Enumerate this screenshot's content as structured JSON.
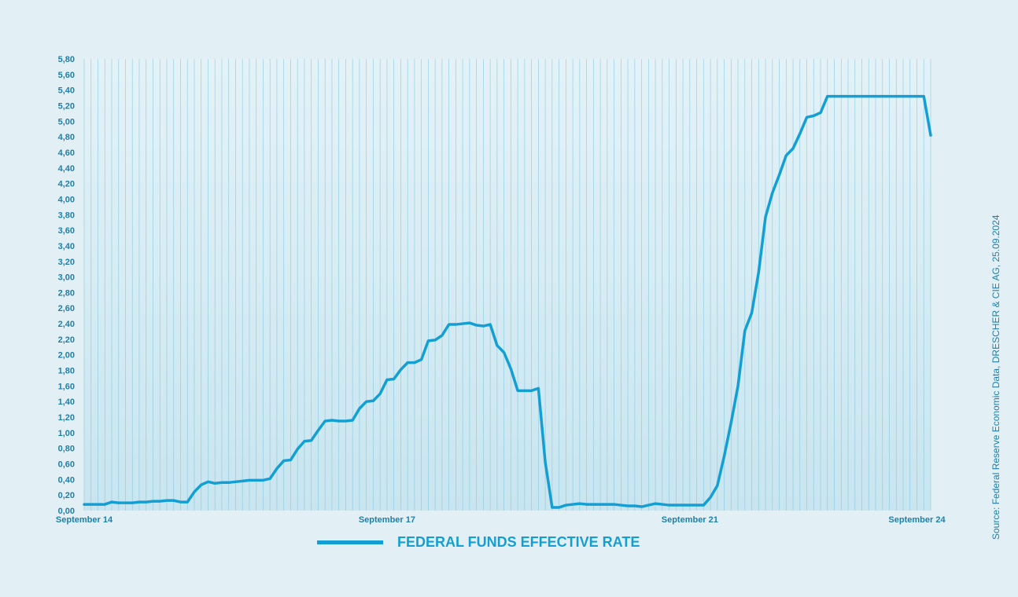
{
  "chart_data": {
    "type": "line",
    "series": [
      {
        "name": "FEDERAL FUNDS EFFECTIVE RATE",
        "color": "#139fd4",
        "values": [
          0.08,
          0.08,
          0.08,
          0.08,
          0.11,
          0.1,
          0.1,
          0.1,
          0.11,
          0.11,
          0.12,
          0.12,
          0.13,
          0.13,
          0.11,
          0.11,
          0.24,
          0.33,
          0.37,
          0.35,
          0.36,
          0.36,
          0.37,
          0.38,
          0.39,
          0.39,
          0.39,
          0.41,
          0.54,
          0.64,
          0.65,
          0.79,
          0.89,
          0.9,
          1.03,
          1.15,
          1.16,
          1.15,
          1.15,
          1.16,
          1.31,
          1.4,
          1.41,
          1.5,
          1.68,
          1.69,
          1.81,
          1.9,
          1.9,
          1.94,
          2.18,
          2.19,
          2.25,
          2.39,
          2.39,
          2.4,
          2.41,
          2.38,
          2.37,
          2.39,
          2.12,
          2.03,
          1.82,
          1.54,
          1.54,
          1.54,
          1.57,
          0.62,
          0.04,
          0.04,
          0.07,
          0.08,
          0.09,
          0.08,
          0.08,
          0.08,
          0.08,
          0.08,
          0.07,
          0.06,
          0.06,
          0.05,
          0.07,
          0.09,
          0.08,
          0.07,
          0.07,
          0.07,
          0.07,
          0.07,
          0.07,
          0.17,
          0.32,
          0.7,
          1.13,
          1.6,
          2.31,
          2.54,
          3.06,
          3.77,
          4.08,
          4.31,
          4.56,
          4.65,
          4.84,
          5.05,
          5.07,
          5.11,
          5.32,
          5.32,
          5.32,
          5.32,
          5.32,
          5.32,
          5.32,
          5.32,
          5.32,
          5.32,
          5.32,
          5.32,
          5.32,
          5.32,
          5.32,
          4.82
        ]
      }
    ],
    "x_labels": [
      "September 14",
      "September 17",
      "September 21",
      "September 24"
    ],
    "x_label_index": [
      0,
      44,
      88,
      121
    ],
    "y_ticks": [
      "0,00",
      "0,20",
      "0,40",
      "0,60",
      "0,80",
      "1,00",
      "1,20",
      "1,40",
      "1,60",
      "1,80",
      "2,00",
      "2,20",
      "2,40",
      "2,60",
      "2,80",
      "3,00",
      "3,20",
      "3,40",
      "3,60",
      "3,80",
      "4,00",
      "4,20",
      "4,40",
      "4,60",
      "4,80",
      "5,00",
      "5,20",
      "5,40",
      "5,60",
      "5,80"
    ],
    "ylim": [
      0,
      5.8
    ],
    "grid": "vertical",
    "legend_position": "bottom"
  },
  "legend": {
    "label": "FEDERAL FUNDS EFFECTIVE RATE"
  },
  "source": "Source: Federal Reserve Economic Data, DRESCHER & CIE AG, 25.09.2024",
  "colors": {
    "background": "#e2f0f5",
    "line": "#139fd4",
    "grid": "#7cc6df",
    "text": "#1f7fa8"
  }
}
